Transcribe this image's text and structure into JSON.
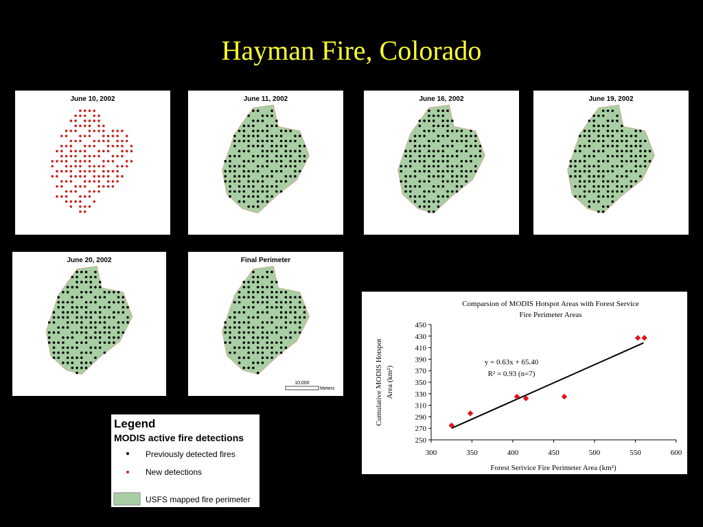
{
  "title": "Hayman Fire, Colorado",
  "maps": [
    {
      "label": "June 10, 2002"
    },
    {
      "label": "June 11, 2002"
    },
    {
      "label": "June 16, 2002"
    },
    {
      "label": "June 19, 2002"
    },
    {
      "label": "June 20, 2002"
    },
    {
      "label": "Final Perimeter",
      "scale_label": "10,000",
      "scale_unit": "Meters"
    }
  ],
  "legend": {
    "title": "Legend",
    "subtitle": "MODIS active fire detections",
    "items": [
      "Previously detected fires",
      "New detections",
      "USFS mapped fire perimeter"
    ]
  },
  "chart_data": {
    "type": "scatter",
    "title": [
      "Comparsion of MODIS Hotspot Areas with Forest Service",
      "Fire Perimeter Areas"
    ],
    "x_label": "Forest Serivice Fire Perimeter Area (km²)",
    "y_label": [
      "Cumulative MODIS Hotspot",
      "Area (km²)"
    ],
    "x": [
      325,
      348,
      405,
      416,
      463,
      553,
      561
    ],
    "values": [
      275,
      296,
      325,
      322,
      325,
      427,
      427
    ],
    "color": "#e0141e",
    "trendline": {
      "x": [
        325,
        560
      ],
      "y": [
        270.2,
        418.2
      ]
    },
    "annotations": [
      "y = 0.63x + 65.40",
      "R² = 0.93 (n=7)"
    ],
    "xlim": [
      300,
      600
    ],
    "xticks": [
      300,
      350,
      400,
      450,
      500,
      550,
      600
    ],
    "ylim": [
      250,
      450
    ],
    "yticks": [
      250,
      270,
      290,
      310,
      330,
      350,
      370,
      390,
      410,
      430,
      450
    ]
  }
}
